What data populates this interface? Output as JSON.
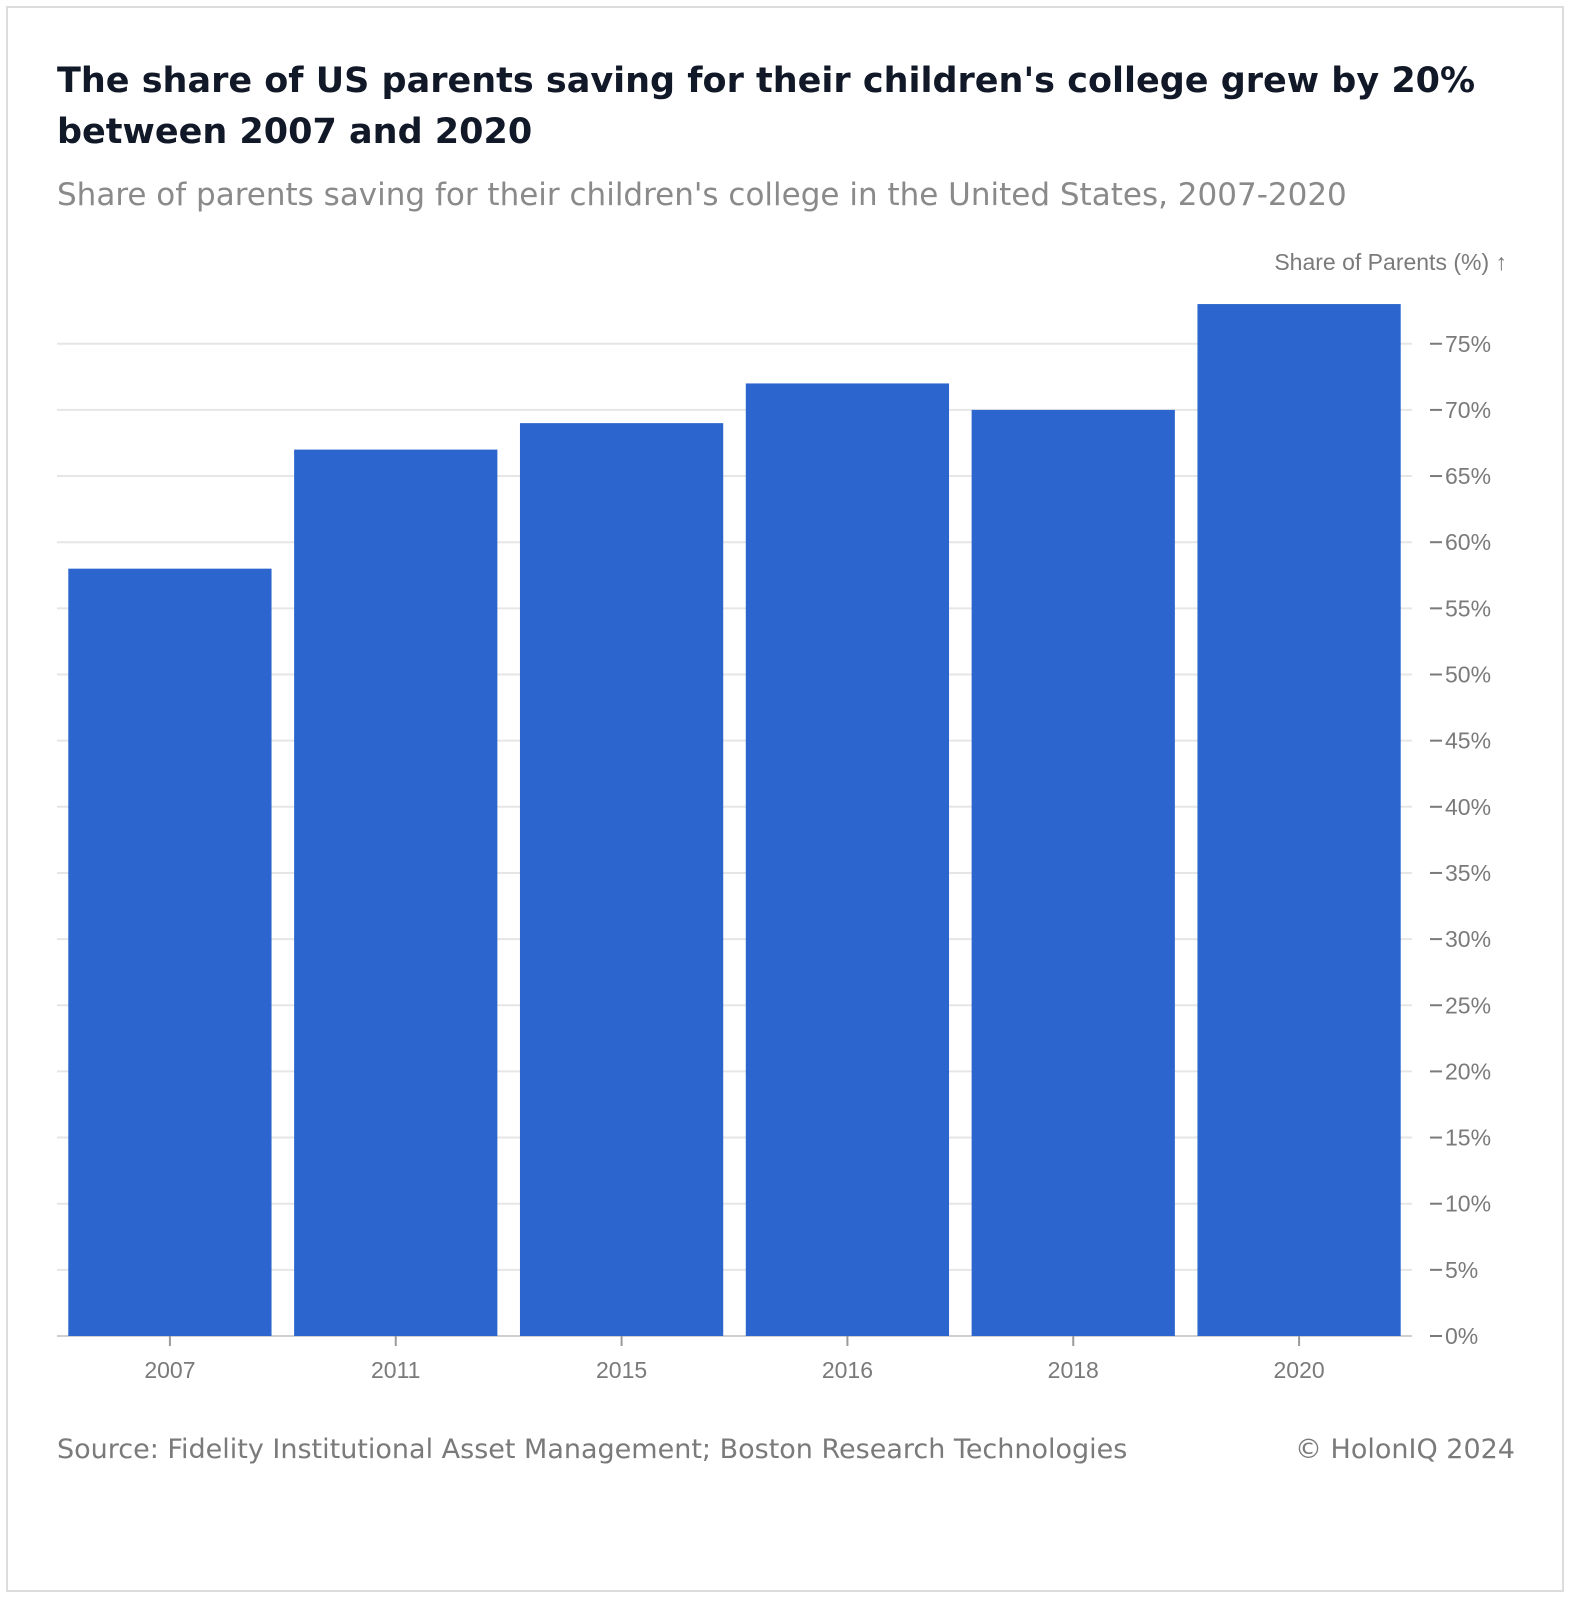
{
  "header": {
    "title": "The share of US parents saving for their children's college grew by 20% between 2007 and 2020",
    "subtitle": "Share of parents saving for their children's college in the United States, 2007-2020"
  },
  "footer": {
    "source": "Source: Fidelity Institutional Asset Management; Boston Research Technologies",
    "copyright": "© HolonIQ 2024"
  },
  "chart_data": {
    "type": "bar",
    "title": "The share of US parents saving for their children's college grew by 20% between 2007 and 2020",
    "subtitle": "Share of parents saving for their children's college in the United States, 2007-2020",
    "xlabel": "",
    "ylabel": "Share of Parents (%) ↑",
    "categories": [
      "2007",
      "2011",
      "2015",
      "2016",
      "2018",
      "2020"
    ],
    "values": [
      58,
      67,
      69,
      72,
      70,
      78
    ],
    "ylim": [
      0,
      78
    ],
    "yticks": [
      0,
      5,
      10,
      15,
      20,
      25,
      30,
      35,
      40,
      45,
      50,
      55,
      60,
      65,
      70,
      75
    ],
    "ytick_labels": [
      "0%",
      "5%",
      "10%",
      "15%",
      "20%",
      "25%",
      "30%",
      "35%",
      "40%",
      "45%",
      "50%",
      "55%",
      "60%",
      "65%",
      "70%",
      "75%"
    ],
    "y_axis_side": "right",
    "grid": true,
    "legend": "none",
    "bar_color": "#2B65CD",
    "grid_color": "#e6e6e6"
  }
}
